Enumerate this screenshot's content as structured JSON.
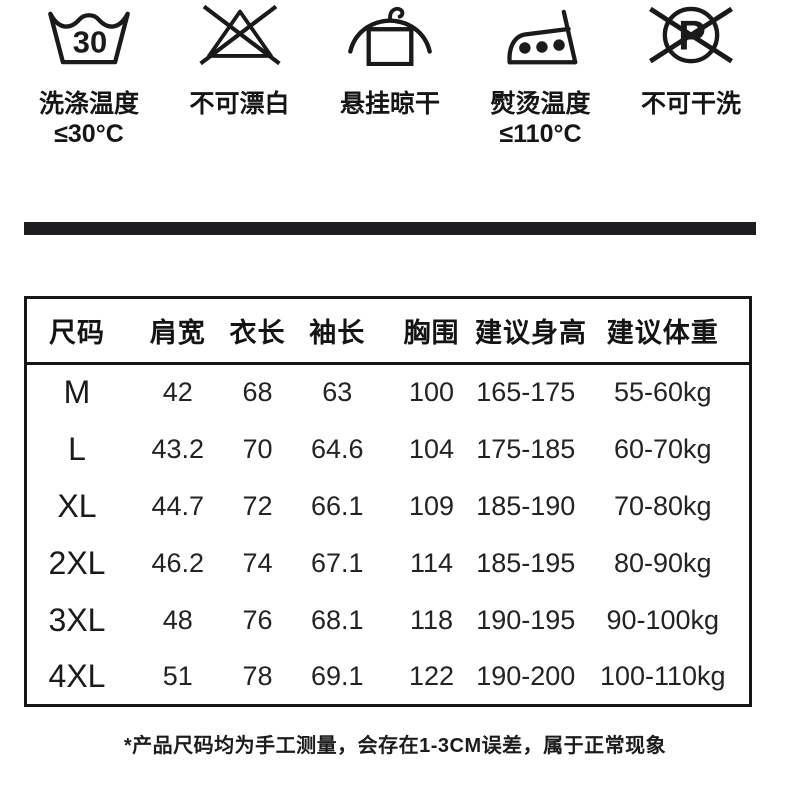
{
  "care_symbols": [
    {
      "icon": "wash-temp-30-icon",
      "icon_text": "30",
      "label_line1": "洗涤温度",
      "label_line2": "≤30°C"
    },
    {
      "icon": "no-bleach-icon",
      "label_line1": "不可漂白"
    },
    {
      "icon": "hang-dry-icon",
      "label_line1": "悬挂晾干"
    },
    {
      "icon": "iron-temp-110-icon",
      "label_line1": "熨烫温度",
      "label_line2": "≤110°C"
    },
    {
      "icon": "no-dry-clean-icon",
      "icon_text": "P",
      "label_line1": "不可干洗"
    }
  ],
  "size_chart": {
    "headers": [
      "尺码",
      "肩宽",
      "衣长",
      "袖长",
      "胸围",
      "建议身高",
      "建议体重"
    ],
    "rows": [
      {
        "size": "M",
        "values": [
          "42",
          "68",
          "63",
          "100",
          "165-175",
          "55-60kg"
        ]
      },
      {
        "size": "L",
        "values": [
          "43.2",
          "70",
          "64.6",
          "104",
          "175-185",
          "60-70kg"
        ]
      },
      {
        "size": "XL",
        "values": [
          "44.7",
          "72",
          "66.1",
          "109",
          "185-190",
          "70-80kg"
        ]
      },
      {
        "size": "2XL",
        "values": [
          "46.2",
          "74",
          "67.1",
          "114",
          "185-195",
          "80-90kg"
        ]
      },
      {
        "size": "3XL",
        "values": [
          "48",
          "76",
          "68.1",
          "118",
          "190-195",
          "90-100kg"
        ]
      },
      {
        "size": "4XL",
        "values": [
          "51",
          "78",
          "69.1",
          "122",
          "190-200",
          "100-110kg"
        ]
      }
    ]
  },
  "footnote": "*产品尺码均为手工测量，会存在1-3CM误差，属于正常现象"
}
